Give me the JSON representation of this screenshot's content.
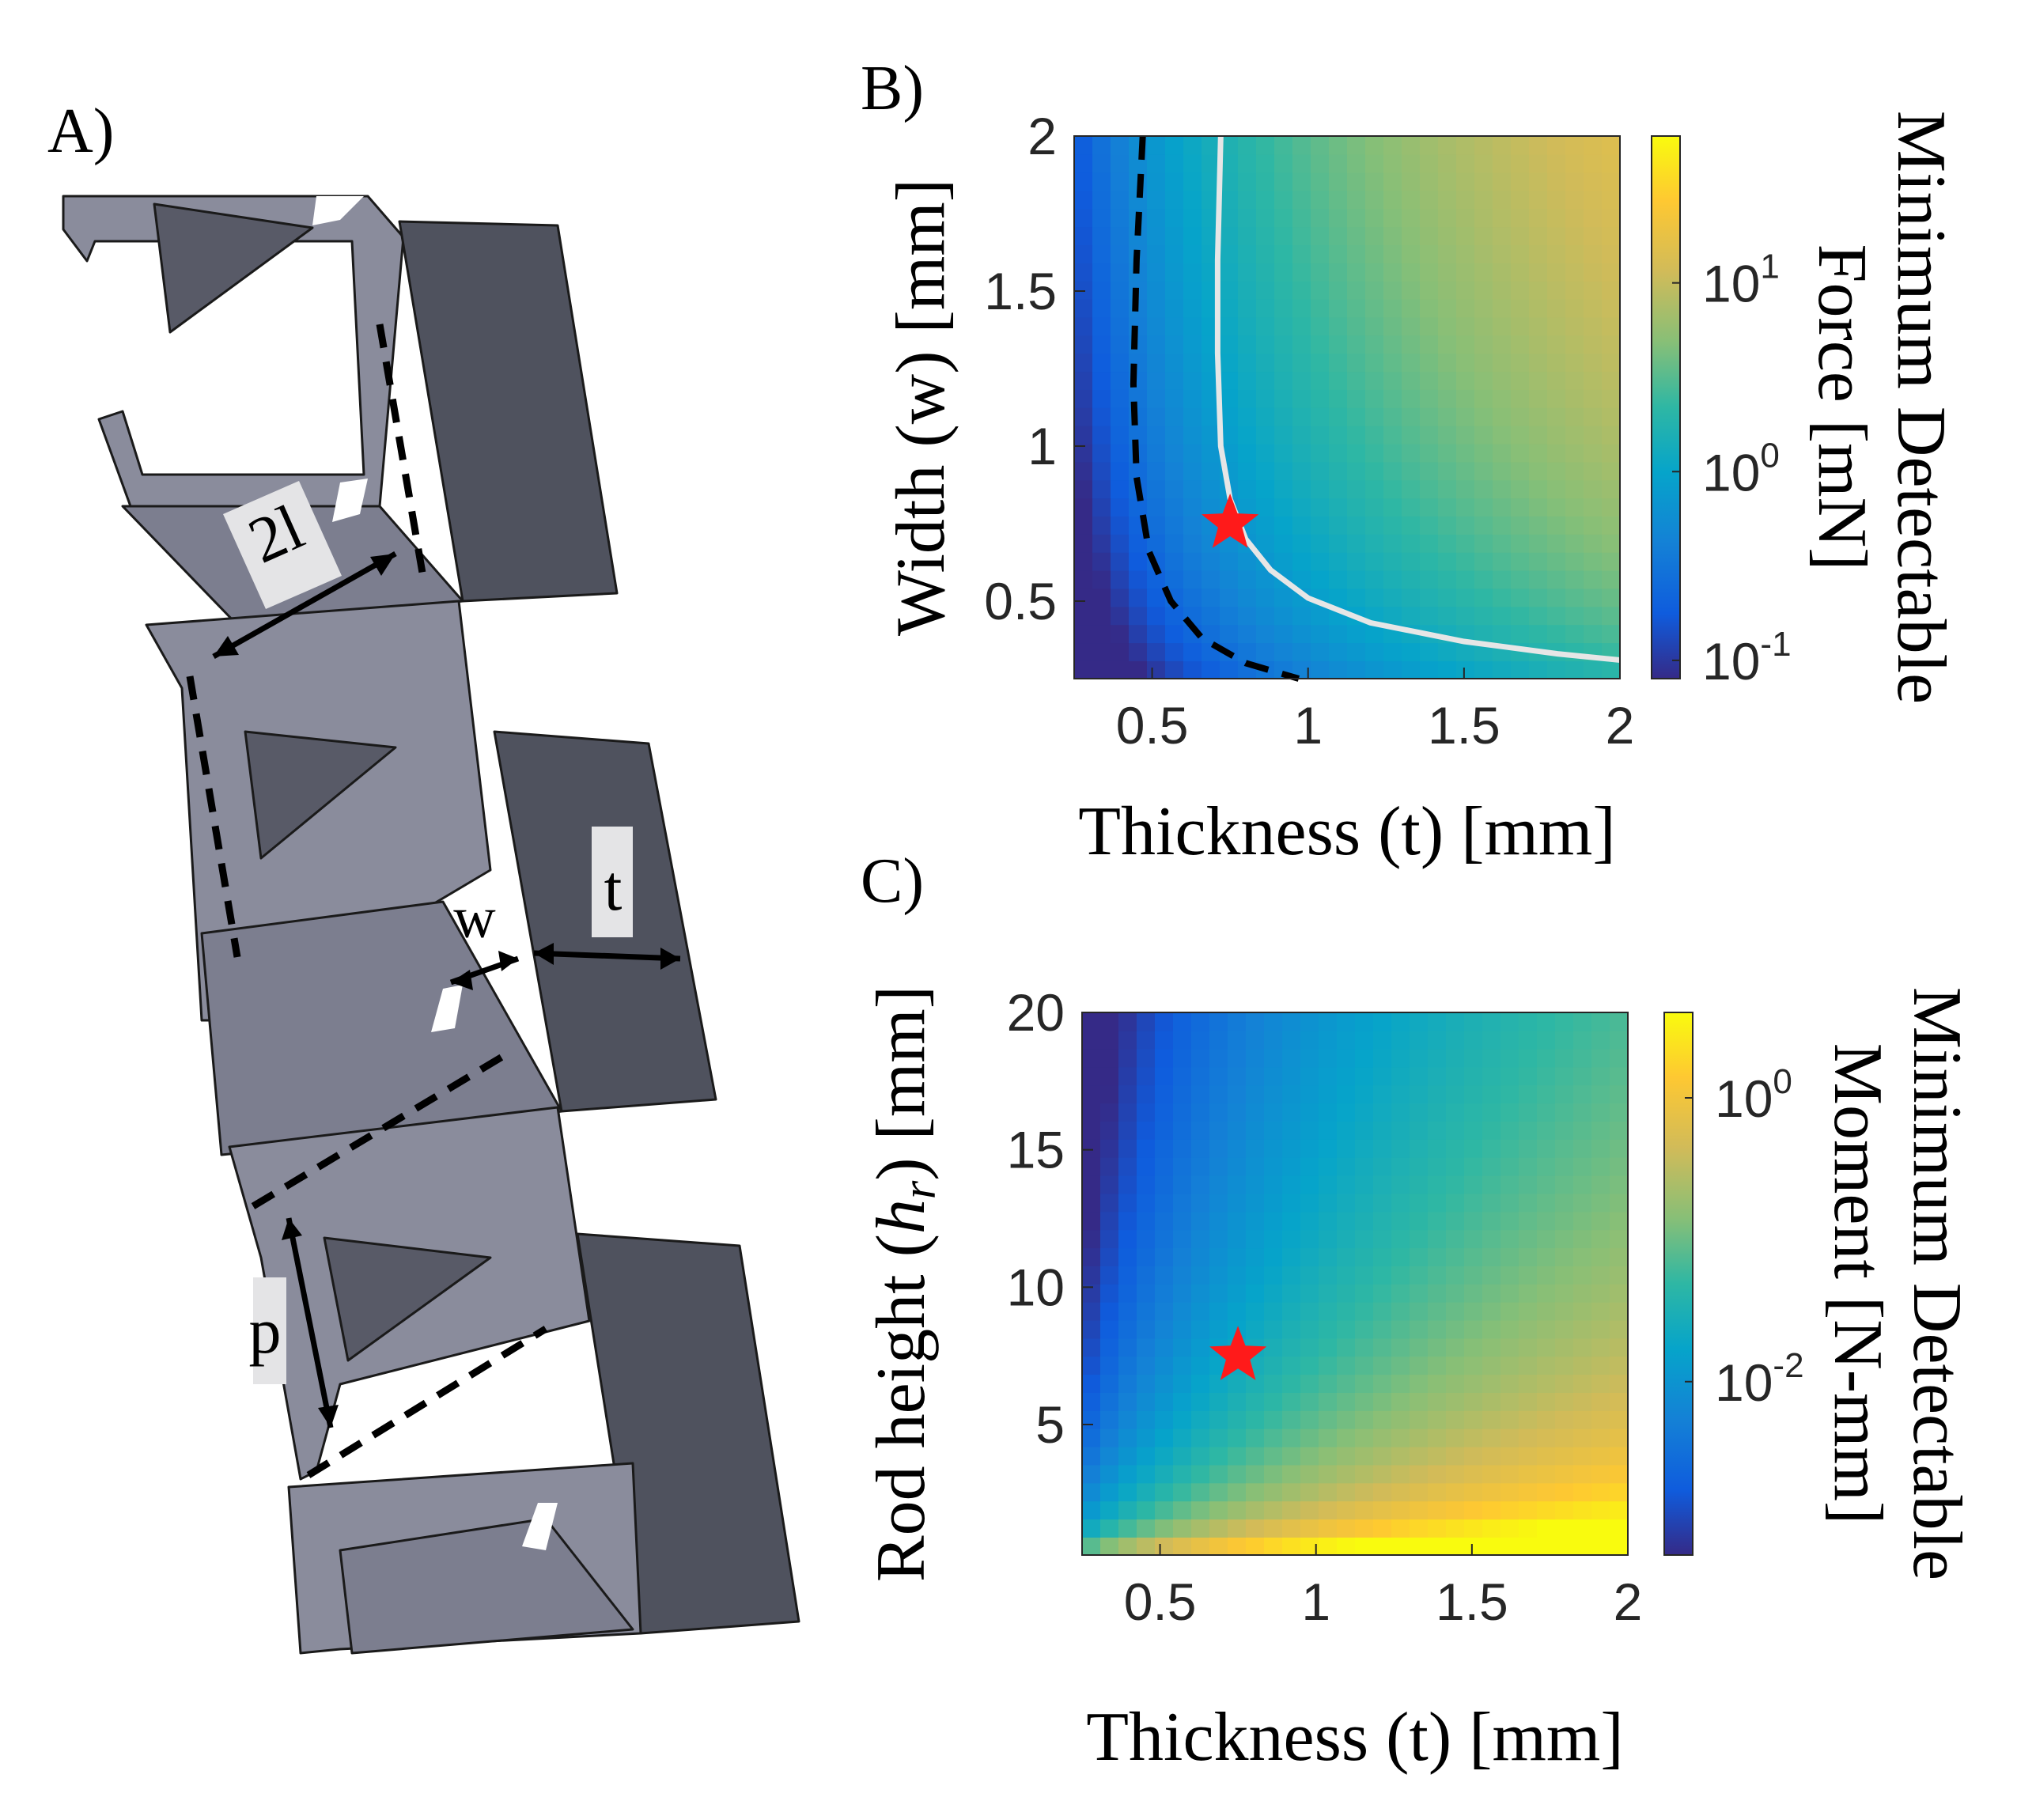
{
  "panels": {
    "A": {
      "label": "A)",
      "dimension_labels": {
        "length": "2l",
        "width": "w",
        "thickness": "t",
        "pitch": "p"
      }
    },
    "B": {
      "label": "B)"
    },
    "C": {
      "label": "C)"
    }
  },
  "chart_data": [
    {
      "panel": "B",
      "type": "heatmap",
      "title": "",
      "xlabel": "Thickness (t) [mm]",
      "ylabel": "Width (w) [mm]",
      "colorbar_label_lines": [
        "Minimum Detectable",
        "Force [mN]"
      ],
      "xlim": [
        0.25,
        2
      ],
      "ylim": [
        0.25,
        2
      ],
      "xticks": [
        0.5,
        1,
        1.5,
        2
      ],
      "xtick_labels": [
        "0.5",
        "1",
        "1.5",
        "2"
      ],
      "yticks": [
        0.5,
        1,
        1.5,
        2
      ],
      "ytick_labels": [
        "0.5",
        "1",
        "1.5",
        "2"
      ],
      "color_scale": "log",
      "colormap": "parula",
      "clim": [
        0.08,
        60
      ],
      "colorbar_ticks": [
        {
          "value": 0.1,
          "base": "10",
          "exp": "-1"
        },
        {
          "value": 1,
          "base": "10",
          "exp": "0"
        },
        {
          "value": 10,
          "base": "10",
          "exp": "1"
        }
      ],
      "contours": [
        {
          "style": "dashed",
          "color": "#000000",
          "points": [
            [
              0.47,
              2.0
            ],
            [
              0.45,
              1.6
            ],
            [
              0.44,
              1.2
            ],
            [
              0.45,
              0.9
            ],
            [
              0.49,
              0.66
            ],
            [
              0.56,
              0.5
            ],
            [
              0.66,
              0.38
            ],
            [
              0.8,
              0.3
            ],
            [
              0.97,
              0.25
            ]
          ]
        },
        {
          "style": "solid",
          "color": "#e6e6e6",
          "points": [
            [
              0.72,
              2.0
            ],
            [
              0.71,
              1.6
            ],
            [
              0.71,
              1.3
            ],
            [
              0.72,
              1.0
            ],
            [
              0.75,
              0.83
            ],
            [
              0.8,
              0.7
            ],
            [
              0.88,
              0.6
            ],
            [
              1.0,
              0.51
            ],
            [
              1.2,
              0.43
            ],
            [
              1.5,
              0.37
            ],
            [
              1.8,
              0.33
            ],
            [
              2.0,
              0.31
            ]
          ]
        }
      ],
      "marker": {
        "shape": "star",
        "color": "#ff1a1a",
        "x": 0.75,
        "y": 0.75
      }
    },
    {
      "panel": "C",
      "type": "heatmap",
      "title": "",
      "xlabel": "Thickness (t) [mm]",
      "ylabel_text": "Rod height (",
      "ylabel_symbol": "h",
      "ylabel_subscript": "r",
      "ylabel_rest": ") [mm]",
      "colorbar_label_lines": [
        "Minimum Detectable",
        "Moment [N-mm]"
      ],
      "xlim": [
        0.25,
        2
      ],
      "ylim": [
        0.25,
        20
      ],
      "xticks": [
        0.5,
        1,
        1.5,
        2
      ],
      "xtick_labels": [
        "0.5",
        "1",
        "1.5",
        "2"
      ],
      "yticks": [
        5,
        10,
        15,
        20
      ],
      "ytick_labels": [
        "5",
        "10",
        "15",
        "20"
      ],
      "color_scale": "log",
      "colormap": "parula",
      "clim": [
        0.0006,
        4
      ],
      "colorbar_ticks": [
        {
          "value": 0.01,
          "base": "10",
          "exp": "-2"
        },
        {
          "value": 1,
          "base": "10",
          "exp": "0"
        }
      ],
      "marker": {
        "shape": "star",
        "color": "#ff1a1a",
        "x": 0.75,
        "y": 7.5
      }
    }
  ]
}
